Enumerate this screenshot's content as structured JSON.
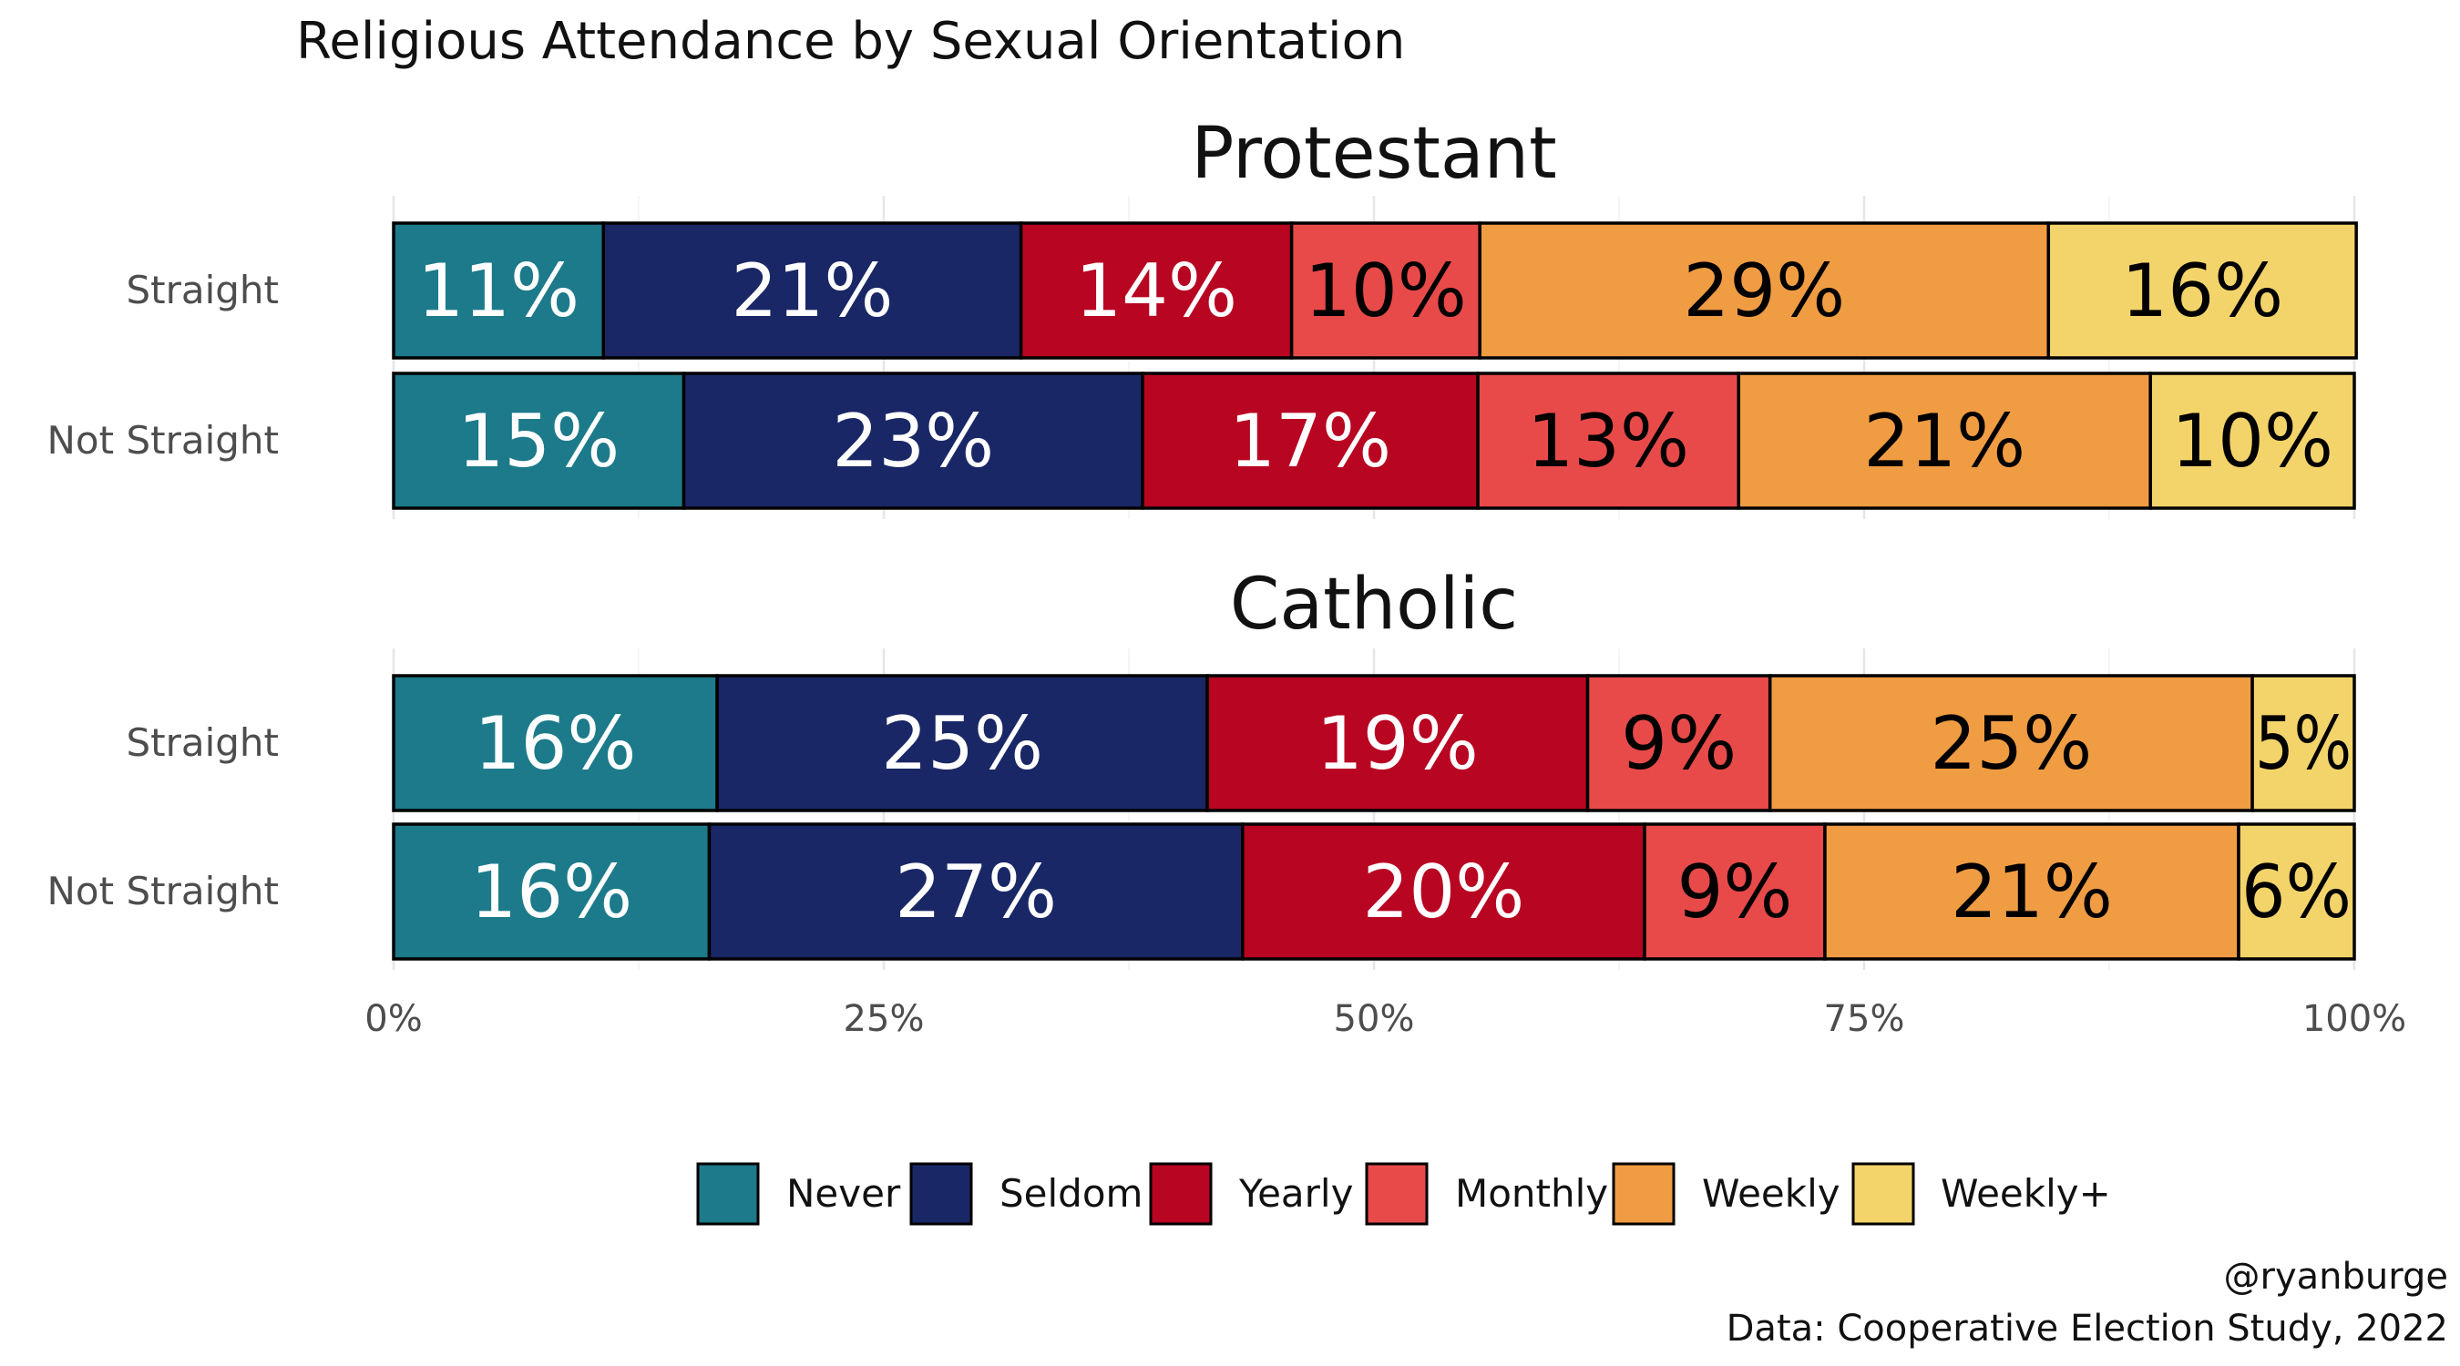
{
  "title": "Religious Attendance by Sexual Orientation",
  "caption_line1": "@ryanburge",
  "caption_line2": "Data: Cooperative Election Study, 2022",
  "colors": {
    "Never": "#1c7a8a",
    "Seldom": "#1a2766",
    "Yearly": "#b80522",
    "Monthly": "#e84a4a",
    "Weekly": "#f09c43",
    "Weekly+": "#f3d46a"
  },
  "chart_data": {
    "type": "bar",
    "orientation": "horizontal",
    "stacked": true,
    "xlim": [
      0,
      1
    ],
    "x_ticks": [
      "0%",
      "25%",
      "50%",
      "75%",
      "100%"
    ],
    "grid": true,
    "legend_position": "bottom",
    "categories_legend": [
      "Never",
      "Seldom",
      "Yearly",
      "Monthly",
      "Weekly",
      "Weekly+"
    ],
    "panels": [
      {
        "name": "Protestant",
        "rows": [
          {
            "label": "Straight",
            "values": [
              0.107,
              0.213,
              0.138,
              0.096,
              0.29,
              0.157
            ],
            "labels": [
              "11%",
              "21%",
              "14%",
              "10%",
              "29%",
              "16%"
            ]
          },
          {
            "label": "Not Straight",
            "values": [
              0.148,
              0.234,
              0.171,
              0.133,
              0.21,
              0.104
            ],
            "labels": [
              "15%",
              "23%",
              "17%",
              "13%",
              "21%",
              "10%"
            ]
          }
        ]
      },
      {
        "name": "Catholic",
        "rows": [
          {
            "label": "Straight",
            "values": [
              0.165,
              0.25,
              0.194,
              0.093,
              0.246,
              0.052
            ],
            "labels": [
              "16%",
              "25%",
              "19%",
              "9%",
              "25%",
              "5%"
            ]
          },
          {
            "label": "Not Straight",
            "values": [
              0.161,
              0.272,
              0.205,
              0.092,
              0.211,
              0.059
            ],
            "labels": [
              "16%",
              "27%",
              "20%",
              "9%",
              "21%",
              "6%"
            ]
          }
        ]
      }
    ]
  }
}
